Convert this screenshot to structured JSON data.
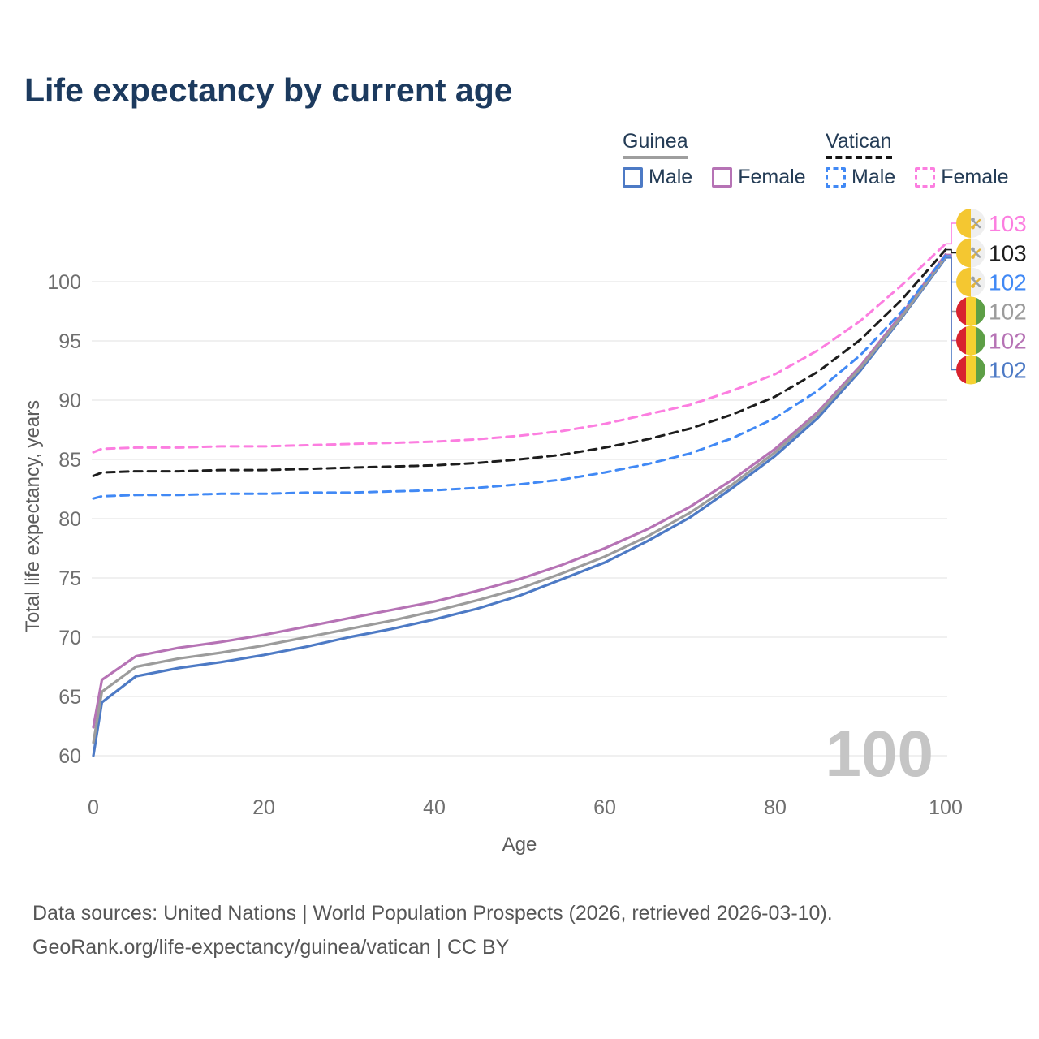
{
  "title": "Life expectancy by current age",
  "watermark": "100",
  "legend": {
    "groups": [
      {
        "title": "Guinea",
        "line_style": "solid",
        "items": [
          {
            "label": "Male",
            "color": "#4d7ac5"
          },
          {
            "label": "Female",
            "color": "#b673b5"
          }
        ]
      },
      {
        "title": "Vatican",
        "line_style": "dashed",
        "items": [
          {
            "label": "Male",
            "color": "#4189f5"
          },
          {
            "label": "Female",
            "color": "#fc7ee0"
          }
        ]
      }
    ]
  },
  "footer": {
    "line1": "Data sources: United Nations | World Population Prospects (2026, retrieved 2026-03-10).",
    "line2": "GeoRank.org/life-expectancy/guinea/vatican | CC BY"
  },
  "chart_data": {
    "type": "line",
    "title": "Life expectancy by current age",
    "xlabel": "Age",
    "ylabel": "Total life expectancy, years",
    "xlim": [
      0,
      100
    ],
    "ylim": [
      58,
      104
    ],
    "xticks": [
      0,
      20,
      40,
      60,
      80,
      100
    ],
    "yticks": [
      60,
      65,
      70,
      75,
      80,
      85,
      90,
      95,
      100
    ],
    "grid": "horizontal",
    "legend_position": "top-right",
    "x": [
      0,
      1,
      5,
      10,
      15,
      20,
      25,
      30,
      35,
      40,
      45,
      50,
      55,
      60,
      65,
      70,
      75,
      80,
      85,
      90,
      95,
      100
    ],
    "series": [
      {
        "id": "vatican-female",
        "name": "Vatican Female",
        "country": "Vatican",
        "sex": "Female",
        "color": "#fc7ee0",
        "dashed": true,
        "flag": "vatican",
        "row": 1,
        "end_label": "103",
        "values": [
          85.6,
          85.9,
          86.0,
          86.0,
          86.1,
          86.1,
          86.2,
          86.3,
          86.4,
          86.5,
          86.7,
          87.0,
          87.4,
          88.0,
          88.8,
          89.6,
          90.8,
          92.2,
          94.2,
          96.7,
          99.8,
          103.2
        ]
      },
      {
        "id": "vatican-all",
        "name": "Vatican Both sexes",
        "country": "Vatican",
        "sex": "Both",
        "color": "#1d1d1d",
        "dashed": true,
        "flag": "vatican",
        "row": 2,
        "end_label": "103",
        "values": [
          83.6,
          83.9,
          84.0,
          84.0,
          84.1,
          84.1,
          84.2,
          84.3,
          84.4,
          84.5,
          84.7,
          85.0,
          85.4,
          86.0,
          86.7,
          87.6,
          88.8,
          90.3,
          92.4,
          95.1,
          98.6,
          102.7
        ]
      },
      {
        "id": "vatican-male",
        "name": "Vatican Male",
        "country": "Vatican",
        "sex": "Male",
        "color": "#4189f5",
        "dashed": true,
        "flag": "vatican",
        "row": 3,
        "end_label": "102",
        "values": [
          81.7,
          81.9,
          82.0,
          82.0,
          82.1,
          82.1,
          82.2,
          82.2,
          82.3,
          82.4,
          82.6,
          82.9,
          83.3,
          83.9,
          84.6,
          85.5,
          86.8,
          88.5,
          90.8,
          93.8,
          97.6,
          102.2
        ]
      },
      {
        "id": "guinea-all",
        "name": "Guinea Both sexes",
        "country": "Guinea",
        "sex": "Both",
        "color": "#9c9c9c",
        "dashed": false,
        "flag": "guinea",
        "row": 4,
        "end_label": "102",
        "values": [
          61.1,
          65.4,
          67.5,
          68.2,
          68.7,
          69.3,
          70.0,
          70.7,
          71.4,
          72.2,
          73.1,
          74.1,
          75.4,
          76.8,
          78.5,
          80.5,
          82.9,
          85.6,
          88.8,
          92.7,
          97.2,
          102.1
        ]
      },
      {
        "id": "guinea-female",
        "name": "Guinea Female",
        "country": "Guinea",
        "sex": "Female",
        "color": "#b673b5",
        "dashed": false,
        "flag": "guinea",
        "row": 5,
        "end_label": "102",
        "values": [
          62.4,
          66.4,
          68.4,
          69.1,
          69.6,
          70.2,
          70.9,
          71.6,
          72.3,
          73.0,
          73.9,
          74.9,
          76.1,
          77.5,
          79.1,
          81.0,
          83.3,
          85.9,
          89.0,
          92.9,
          97.4,
          102.3
        ]
      },
      {
        "id": "guinea-male",
        "name": "Guinea Male",
        "country": "Guinea",
        "sex": "Male",
        "color": "#4d7ac5",
        "dashed": false,
        "flag": "guinea",
        "row": 6,
        "end_label": "102",
        "values": [
          60.0,
          64.5,
          66.7,
          67.4,
          67.9,
          68.5,
          69.2,
          70.0,
          70.7,
          71.5,
          72.4,
          73.5,
          74.9,
          76.3,
          78.1,
          80.1,
          82.6,
          85.3,
          88.5,
          92.5,
          97.1,
          102.0
        ]
      }
    ],
    "flag_colors": {
      "guinea": {
        "red": "#d8232f",
        "yellow": "#f5d130",
        "green": "#5d9f46"
      },
      "vatican": {
        "gold": "#f4c731",
        "white": "#efefef",
        "key_gold": "#e3b53a",
        "key_silver": "#9aa0a6"
      }
    }
  }
}
